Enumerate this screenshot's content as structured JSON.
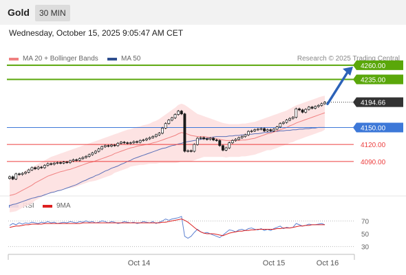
{
  "header": {
    "symbol": "Gold",
    "timeframe": "30 MIN",
    "datetime": "Wednesday, October 15, 2025 9:05:47 AM CET"
  },
  "legend": {
    "ma20_label": "MA 20 + Bollinger Bands",
    "ma50_label": "MA 50",
    "credit": "Research © 2025 Trading Central",
    "rsi_label": "RSI",
    "rsi_ma_label": "9MA"
  },
  "colors": {
    "candle": "#1a1a1a",
    "ma20": "#f08080",
    "band_fill": "#fde0e0",
    "ma50": "#5a6fb8",
    "green_level": "#5aa70a",
    "blue_level": "#3d78d8",
    "red_level": "#ec3d3d",
    "price_tag": "#333333",
    "arrow": "#2c62b8",
    "rsi": "#5a7fd0",
    "rsi_ma": "#dd1f1f"
  },
  "chart_data": [
    {
      "type": "candlestick",
      "title": "Gold",
      "timeframe": "30 MIN",
      "x_ticks": [
        "Oct 14",
        "Oct 15",
        "Oct 16"
      ],
      "ylim": [
        4040,
        4272
      ],
      "current_price": 4194.66,
      "levels": [
        {
          "value": 4260.0,
          "label": "4260.00",
          "kind": "resistance"
        },
        {
          "value": 4235.0,
          "label": "4235.00",
          "kind": "resistance"
        },
        {
          "value": 4150.0,
          "label": "4150.00",
          "kind": "pivot"
        },
        {
          "value": 4120.0,
          "label": "4120.00",
          "kind": "support"
        },
        {
          "value": 4090.0,
          "label": "4090.00",
          "kind": "support"
        }
      ],
      "forecast_arrow": {
        "from": 4194,
        "to": 4255,
        "direction": "up"
      },
      "close_series": [
        4063,
        4059,
        4068,
        4067,
        4069,
        4071,
        4075,
        4079,
        4077,
        4080,
        4079,
        4083,
        4086,
        4085,
        4087,
        4088,
        4087,
        4089,
        4088,
        4091,
        4093,
        4092,
        4095,
        4097,
        4099,
        4102,
        4105,
        4108,
        4112,
        4116,
        4118,
        4117,
        4119,
        4118,
        4122,
        4124,
        4123,
        4122,
        4123,
        4125,
        4124,
        4127,
        4128,
        4130,
        4132,
        4134,
        4137,
        4140,
        4149,
        4157,
        4163,
        4167,
        4173,
        4179,
        4174,
        4108,
        4109,
        4108,
        4120,
        4131,
        4132,
        4130,
        4129,
        4131,
        4128,
        4127,
        4118,
        4110,
        4114,
        4123,
        4127,
        4129,
        4132,
        4134,
        4137,
        4143,
        4144,
        4146,
        4147,
        4148,
        4144,
        4146,
        4144,
        4147,
        4151,
        4157,
        4159,
        4163,
        4166,
        4168,
        4183,
        4181,
        4177,
        4182,
        4186,
        4184,
        4187,
        4189,
        4192,
        4194.66
      ],
      "ma20_series": [
        4030,
        4031,
        4033,
        4036,
        4039,
        4042,
        4045,
        4048,
        4052,
        4055,
        4058,
        4061,
        4064,
        4066,
        4068,
        4070,
        4072,
        4073,
        4075,
        4076,
        4078,
        4080,
        4082,
        4084,
        4086,
        4088,
        4089,
        4091,
        4093,
        4095,
        4097,
        4099,
        4101,
        4104,
        4106,
        4108,
        4110,
        4112,
        4114,
        4115,
        4117,
        4118,
        4119,
        4120,
        4121,
        4123,
        4124,
        4126,
        4128,
        4130,
        4132,
        4134,
        4136,
        4139,
        4141,
        4140,
        4138,
        4136,
        4135,
        4134,
        4134,
        4134,
        4133,
        4132,
        4131,
        4130,
        4129,
        4128,
        4127,
        4127,
        4127,
        4127,
        4127,
        4128,
        4128,
        4129,
        4130,
        4131,
        4133,
        4135,
        4137,
        4139,
        4140,
        4142,
        4144,
        4146,
        4148,
        4150,
        4153,
        4155,
        4158,
        4160,
        4162,
        4164,
        4166,
        4168,
        4170,
        4172,
        4174,
        4176
      ],
      "ma50_series": [
        4012,
        4014,
        4015,
        4017,
        4019,
        4021,
        4023,
        4025,
        4026,
        4028,
        4029,
        4031,
        4033,
        4035,
        4036,
        4038,
        4039,
        4041,
        4043,
        4045,
        4047,
        4049,
        4052,
        4055,
        4057,
        4060,
        4062,
        4065,
        4067,
        4070,
        4073,
        4075,
        4078,
        4080,
        4082,
        4085,
        4087,
        4090,
        4092,
        4095,
        4097,
        4099,
        4101,
        4103,
        4105,
        4107,
        4109,
        4111,
        4113,
        4114,
        4116,
        4118,
        4119,
        4121,
        4122,
        4124,
        4125,
        4126,
        4127,
        4128,
        4129,
        4130,
        4131,
        4132,
        4133,
        4134,
        4134,
        4134,
        4134,
        4135,
        4135,
        4136,
        4136,
        4137,
        4137,
        4138,
        4138,
        4139,
        4139,
        4140,
        4141,
        4141,
        4142,
        4143,
        4143,
        4144,
        4144,
        4145,
        4145,
        4146,
        4146,
        4147,
        4147,
        4148,
        4148,
        4149,
        4149,
        4150,
        4150,
        4150
      ],
      "bollinger_upper": [
        4060,
        4061,
        4064,
        4067,
        4070,
        4074,
        4077,
        4080,
        4083,
        4086,
        4089,
        4092,
        4095,
        4098,
        4100,
        4102,
        4104,
        4106,
        4108,
        4110,
        4112,
        4114,
        4116,
        4118,
        4120,
        4122,
        4124,
        4126,
        4128,
        4130,
        4132,
        4134,
        4136,
        4138,
        4140,
        4142,
        4144,
        4146,
        4147,
        4149,
        4151,
        4152,
        4154,
        4155,
        4157,
        4160,
        4162,
        4165,
        4169,
        4173,
        4177,
        4181,
        4185,
        4190,
        4192,
        4190,
        4186,
        4182,
        4178,
        4174,
        4172,
        4170,
        4168,
        4166,
        4164,
        4162,
        4160,
        4158,
        4157,
        4156,
        4156,
        4156,
        4156,
        4157,
        4157,
        4158,
        4159,
        4160,
        4162,
        4164,
        4166,
        4168,
        4170,
        4172,
        4174,
        4176,
        4178,
        4180,
        4183,
        4186,
        4189,
        4191,
        4193,
        4195,
        4197,
        4199,
        4201,
        4203,
        4205,
        4206
      ],
      "bollinger_lower": [
        4000,
        4001,
        4002,
        4005,
        4008,
        4011,
        4013,
        4016,
        4021,
        4024,
        4027,
        4030,
        4033,
        4034,
        4036,
        4038,
        4040,
        4041,
        4043,
        4043,
        4044,
        4046,
        4048,
        4050,
        4052,
        4054,
        4055,
        4056,
        4058,
        4060,
        4062,
        4064,
        4066,
        4070,
        4072,
        4074,
        4076,
        4078,
        4081,
        4082,
        4083,
        4084,
        4084,
        4085,
        4086,
        4086,
        4086,
        4087,
        4087,
        4087,
        4087,
        4087,
        4087,
        4088,
        4090,
        4090,
        4090,
        4090,
        4092,
        4094,
        4096,
        4098,
        4098,
        4098,
        4098,
        4098,
        4098,
        4098,
        4097,
        4098,
        4098,
        4098,
        4098,
        4099,
        4099,
        4100,
        4101,
        4102,
        4104,
        4106,
        4108,
        4110,
        4110,
        4112,
        4114,
        4116,
        4118,
        4120,
        4123,
        4124,
        4127,
        4129,
        4131,
        4133,
        4135,
        4137,
        4139,
        4141,
        4143,
        4146
      ],
      "rsi_panel": {
        "ylim": [
          20,
          80
        ],
        "ticks": [
          70,
          50,
          30
        ],
        "rsi_series": [
          63,
          66,
          64,
          67,
          65,
          67,
          66,
          68,
          67,
          66,
          68,
          67,
          69,
          67,
          68,
          66,
          67,
          68,
          67,
          69,
          68,
          67,
          69,
          68,
          70,
          68,
          69,
          67,
          68,
          70,
          69,
          67,
          69,
          68,
          66,
          67,
          69,
          68,
          67,
          68,
          66,
          67,
          69,
          68,
          67,
          69,
          66,
          68,
          70,
          73,
          71,
          73,
          74,
          75,
          77,
          46,
          43,
          46,
          52,
          57,
          53,
          51,
          52,
          50,
          48,
          46,
          44,
          48,
          52,
          56,
          55,
          53,
          56,
          57,
          55,
          58,
          59,
          57,
          56,
          58,
          55,
          57,
          55,
          58,
          60,
          62,
          58,
          60,
          59,
          60,
          66,
          64,
          62,
          63,
          65,
          64,
          64,
          65,
          66,
          64
        ],
        "rsi_ma_series": [
          60,
          61,
          62,
          62,
          63,
          64,
          64,
          65,
          65,
          65,
          65,
          66,
          66,
          66,
          66,
          66,
          66,
          66,
          66,
          66,
          66,
          66,
          66,
          67,
          67,
          67,
          67,
          67,
          67,
          67,
          67,
          67,
          67,
          67,
          67,
          67,
          67,
          67,
          67,
          67,
          67,
          67,
          67,
          67,
          67,
          67,
          67,
          67,
          68,
          68,
          69,
          70,
          71,
          72,
          73,
          71,
          68,
          64,
          60,
          56,
          53,
          51,
          50,
          50,
          50,
          49,
          48,
          47,
          49,
          51,
          52,
          53,
          54,
          54,
          55,
          55,
          56,
          56,
          57,
          57,
          57,
          57,
          57,
          57,
          58,
          58,
          59,
          59,
          59,
          60,
          61,
          62,
          62,
          63,
          63,
          64,
          64,
          64,
          64,
          64
        ]
      }
    }
  ]
}
